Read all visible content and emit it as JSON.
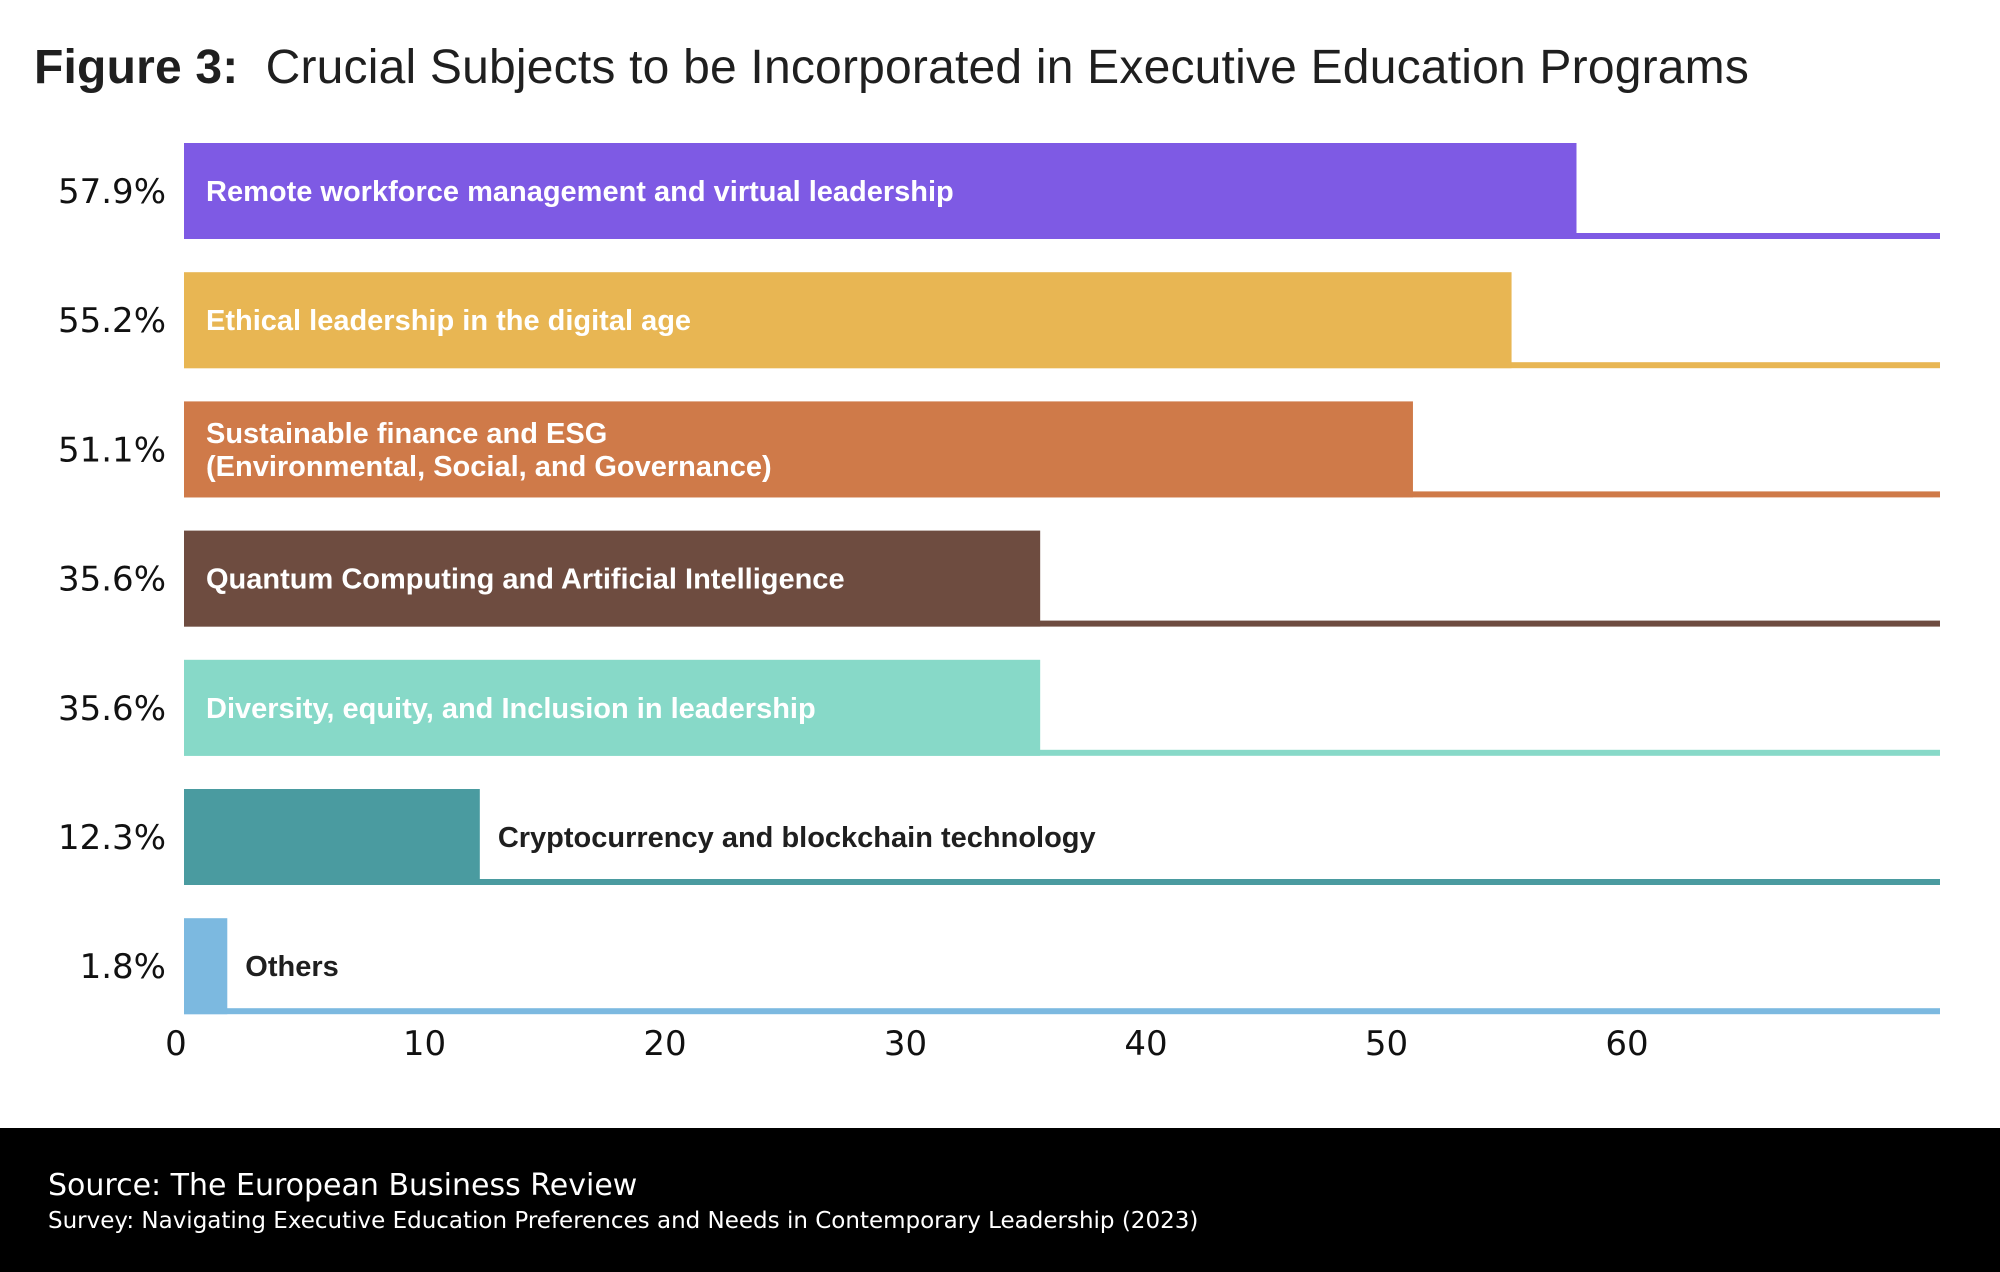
{
  "figure": {
    "label": "Figure 3:",
    "title": "Crucial Subjects to be Incorporated in Executive Education Programs"
  },
  "chart_data": {
    "type": "bar",
    "orientation": "horizontal",
    "title": "Figure 3:  Crucial Subjects to be Incorporated in Executive Education Programs",
    "xlabel": "",
    "ylabel": "",
    "xlim": [
      0,
      73
    ],
    "xticks": [
      0,
      10,
      20,
      30,
      40,
      50,
      60
    ],
    "grid": false,
    "categories": [
      "Remote workforce management and virtual leadership",
      "Ethical leadership in the digital age",
      "Sustainable finance and ESG\n(Environmental, Social, and Governance)",
      "Quantum Computing and Artificial Intelligence",
      "Diversity, equity, and Inclusion in leadership",
      "Cryptocurrency and blockchain technology",
      "Others"
    ],
    "values": [
      57.9,
      55.2,
      51.1,
      35.6,
      35.6,
      12.3,
      1.8
    ],
    "value_labels": [
      "57.9%",
      "55.2%",
      "51.1%",
      "35.6%",
      "35.6%",
      "12.3%",
      "1.8%"
    ],
    "colors": [
      "#7e5ae4",
      "#e8b653",
      "#cf7a49",
      "#6e4c40",
      "#87d9c8",
      "#4a9ba0",
      "#7cb9e0"
    ],
    "label_inside": [
      true,
      true,
      true,
      true,
      true,
      false,
      false
    ],
    "label_color_inside": "#ffffff",
    "label_color_outside": "#1f1f1f"
  },
  "footer": {
    "source": "Source: The European Business Review",
    "survey": "Survey: Navigating Executive Education Preferences and Needs in Contemporary Leadership (2023)"
  }
}
